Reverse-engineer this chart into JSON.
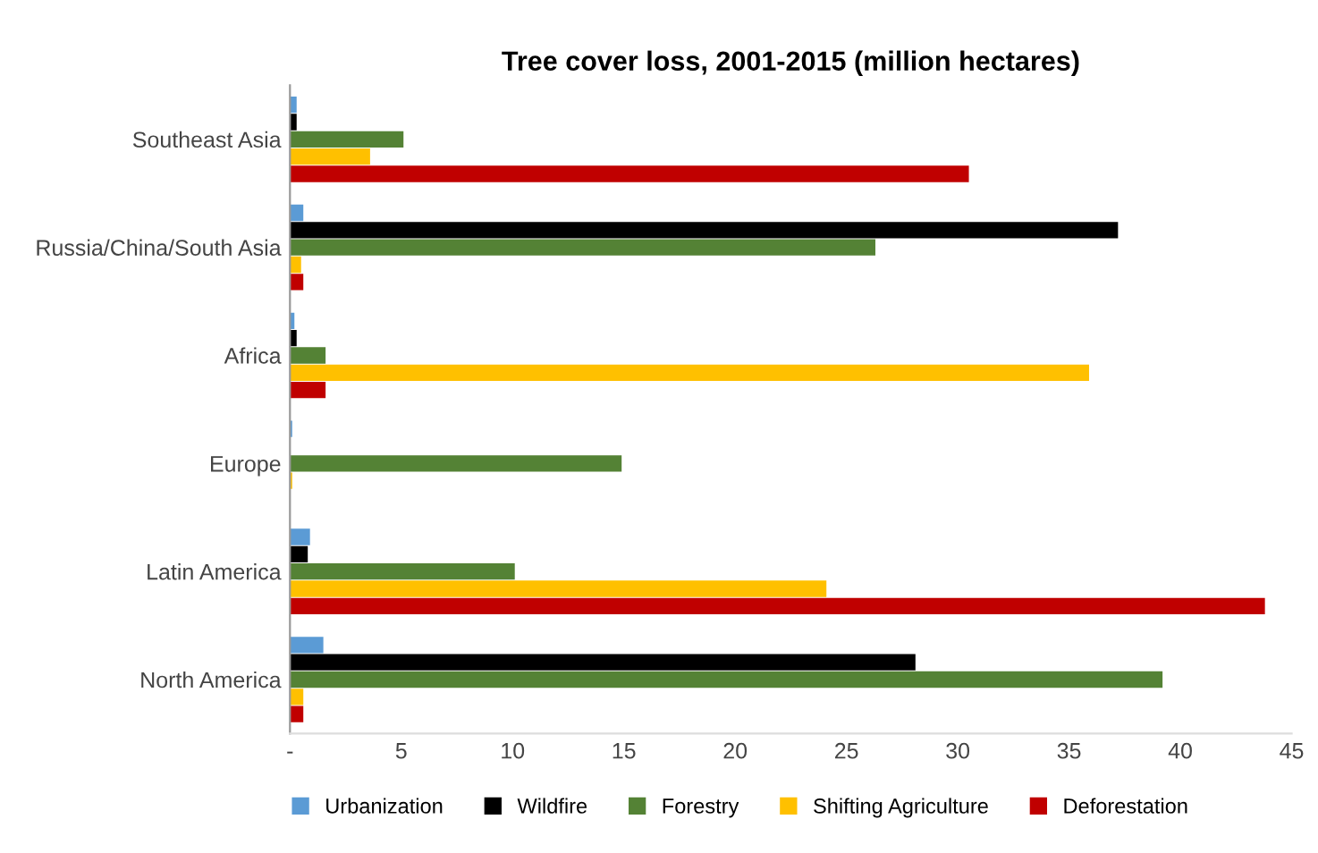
{
  "chart_data": {
    "type": "bar",
    "orientation": "horizontal",
    "title": "Tree cover loss, 2001-2015 (million hectares)",
    "categories": [
      "Southeast Asia",
      "Russia/China/South Asia",
      "Africa",
      "Europe",
      "Latin America",
      "North America"
    ],
    "series": [
      {
        "name": "Urbanization",
        "color": "#5b9bd5",
        "values": [
          0.3,
          0.6,
          0.2,
          0.1,
          0.9,
          1.5
        ]
      },
      {
        "name": "Wildfire",
        "color": "#000000",
        "values": [
          0.3,
          37.2,
          0.3,
          null,
          0.8,
          28.1
        ]
      },
      {
        "name": "Forestry",
        "color": "#548235",
        "values": [
          5.1,
          26.3,
          1.6,
          14.9,
          10.1,
          39.2
        ]
      },
      {
        "name": "Shifting Agriculture",
        "color": "#ffc000",
        "values": [
          3.6,
          0.5,
          35.9,
          0.1,
          24.1,
          0.6
        ]
      },
      {
        "name": "Deforestation",
        "color": "#c00000",
        "values": [
          30.5,
          0.6,
          1.6,
          null,
          43.8,
          0.6
        ]
      }
    ],
    "xlim": [
      0,
      45
    ],
    "xticks": [
      {
        "value": 0,
        "label": "-"
      },
      5,
      10,
      15,
      20,
      25,
      30,
      35,
      40,
      45
    ],
    "grid": false,
    "legend": "bottom"
  }
}
